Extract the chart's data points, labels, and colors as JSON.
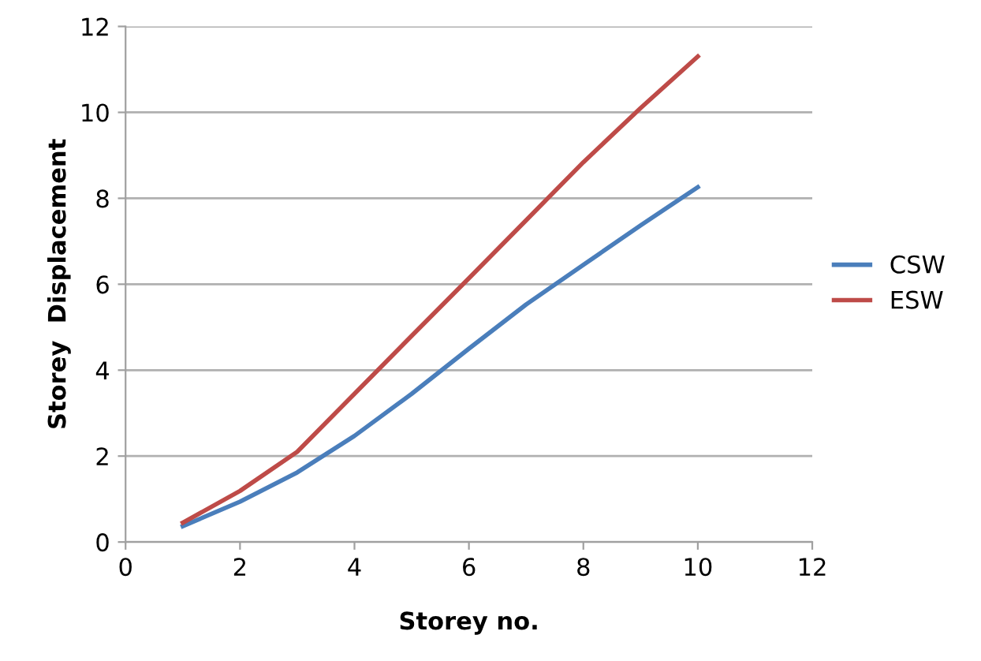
{
  "chart_data": {
    "type": "line",
    "xlabel": "Storey no.",
    "ylabel": "Storey  Displacement",
    "x": [
      1,
      2,
      3,
      4,
      5,
      6,
      7,
      8,
      9,
      10
    ],
    "series": [
      {
        "name": "CSW",
        "color": "#4a7ebb",
        "values": [
          0.37,
          0.94,
          1.62,
          2.47,
          3.45,
          4.5,
          5.53,
          6.45,
          7.37,
          8.26
        ]
      },
      {
        "name": "ESW",
        "color": "#be4b48",
        "values": [
          0.45,
          1.19,
          2.1,
          3.45,
          4.8,
          6.14,
          7.49,
          8.84,
          10.1,
          11.3
        ]
      }
    ],
    "xlim": [
      0,
      12
    ],
    "xticks": [
      0,
      2,
      4,
      6,
      8,
      10,
      12
    ],
    "ylim": [
      0,
      12
    ],
    "yticks": [
      0,
      2,
      4,
      6,
      8,
      10,
      12
    ],
    "grid": "y",
    "legend": "right",
    "marker": "none",
    "line_style": "solid"
  }
}
